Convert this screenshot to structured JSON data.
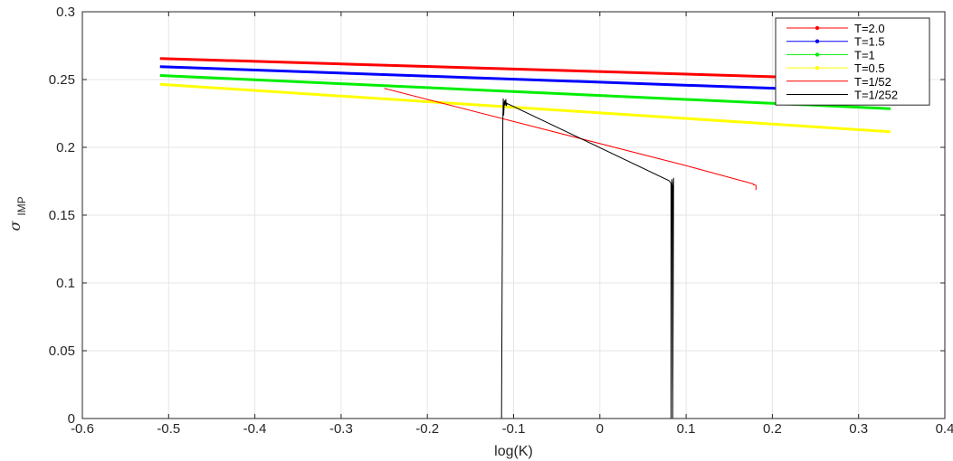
{
  "chart_data": {
    "type": "line",
    "title": "",
    "xlabel": "log(K)",
    "ylabel": "σ",
    "ylabel_subscript": "IMP",
    "xlim": [
      -0.6,
      0.4
    ],
    "ylim": [
      0,
      0.3
    ],
    "grid": true,
    "legend_position": "top-right",
    "x_ticks": [
      "-0.6",
      "-0.5",
      "-0.4",
      "-0.3",
      "-0.2",
      "-0.1",
      "0",
      "0.1",
      "0.2",
      "0.3",
      "0.4"
    ],
    "y_ticks": [
      "0",
      "0.05",
      "0.1",
      "0.15",
      "0.2",
      "0.25",
      "0.3"
    ],
    "series": [
      {
        "name": "T=2.0",
        "color": "#ff0000",
        "style": "thick",
        "marker": "dot",
        "x": [
          -0.51,
          0.337
        ],
        "y": [
          0.2655,
          0.2495
        ]
      },
      {
        "name": "T=1.5",
        "color": "#0000ff",
        "style": "thick",
        "marker": "dot",
        "x": [
          -0.51,
          0.337
        ],
        "y": [
          0.2595,
          0.2405
        ]
      },
      {
        "name": "T=1",
        "color": "#00ee00",
        "style": "thick",
        "marker": "dot",
        "x": [
          -0.51,
          0.337
        ],
        "y": [
          0.253,
          0.2285
        ]
      },
      {
        "name": "T=0.5",
        "color": "#ffff00",
        "style": "thick",
        "marker": "dot",
        "x": [
          -0.51,
          0.337
        ],
        "y": [
          0.2465,
          0.2115
        ]
      },
      {
        "name": "T=1/52",
        "color": "#ff0000",
        "style": "thin",
        "marker": "none",
        "x": [
          -0.25,
          0.1,
          0.178,
          0.178,
          0.181,
          0.181
        ],
        "y": [
          0.2435,
          0.1865,
          0.173,
          0.1725,
          0.172,
          0.1685
        ]
      },
      {
        "name": "T=1/252",
        "color": "#000000",
        "style": "thin",
        "marker": "none",
        "x": [
          -0.114,
          -0.1125,
          -0.112,
          -0.1115,
          -0.111,
          -0.1105,
          -0.11,
          -0.109,
          -0.1085,
          -0.108,
          0.08,
          0.0825,
          0.0825,
          0.0835,
          0.0835,
          0.0845,
          0.0845,
          0.0855,
          0.0855
        ],
        "y": [
          0.0,
          0.219,
          0.236,
          0.2235,
          0.2315,
          0.2345,
          0.231,
          0.2355,
          0.2305,
          0.2325,
          0.1755,
          0.1735,
          0.0,
          0.1745,
          0.1765,
          0.171,
          0.0,
          0.1775,
          0.174
        ]
      }
    ]
  }
}
